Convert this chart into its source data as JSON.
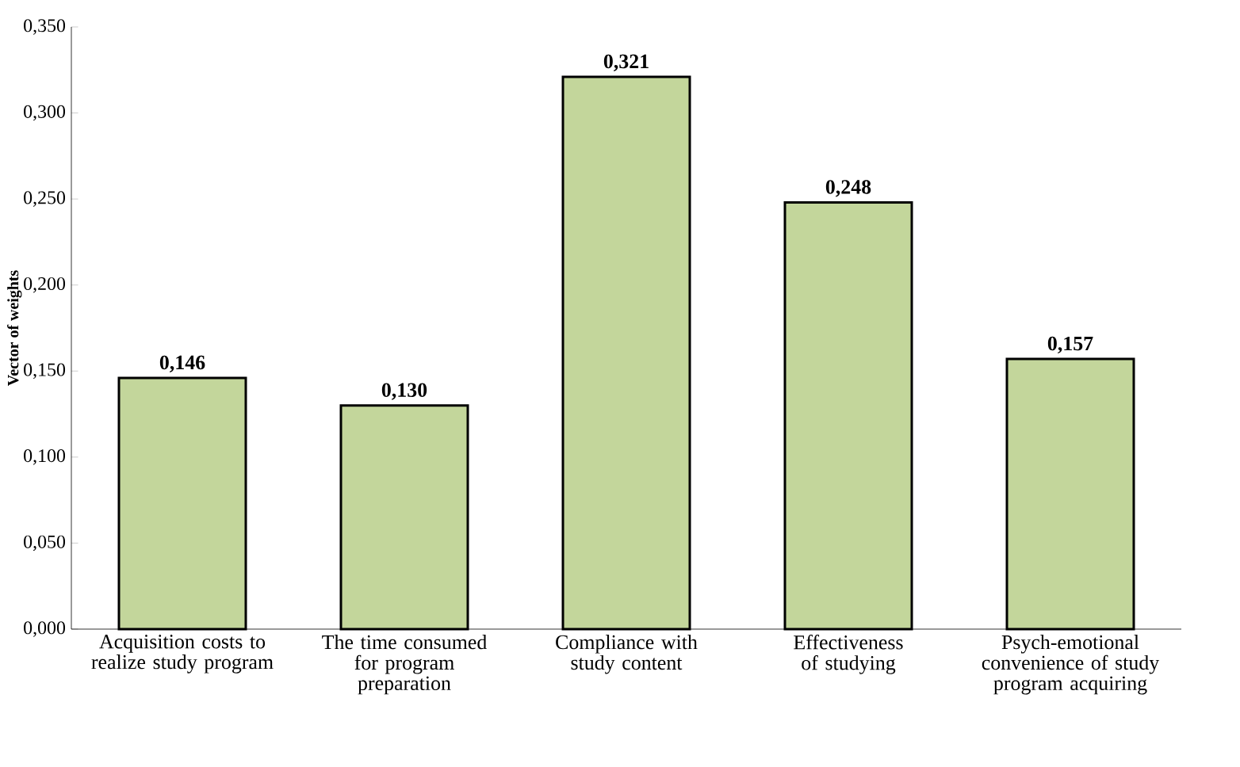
{
  "chart_data": {
    "type": "bar",
    "ylabel": "Vector of weights",
    "categories": [
      "Acquisition costs to realize study program",
      "The time consumed for program preparation",
      "Compliance with study content",
      "Effectiveness of studying",
      "Psych-emotional convenience of study program acquiring"
    ],
    "values": [
      0.146,
      0.13,
      0.321,
      0.248,
      0.157
    ],
    "value_labels": [
      "0,146",
      "0,130",
      "0,321",
      "0,248",
      "0,157"
    ],
    "color": "#c3d69b",
    "ylim": [
      0,
      0.35
    ],
    "yticks": [
      {
        "value": 0,
        "label": "0,000"
      },
      {
        "value": 0.05,
        "label": "0,050"
      },
      {
        "value": 0.1,
        "label": "0,100"
      },
      {
        "value": 0.15,
        "label": "0,150"
      },
      {
        "value": 0.2,
        "label": "0,200"
      },
      {
        "value": 0.25,
        "label": "0,250"
      },
      {
        "value": 0.3,
        "label": "0,300"
      },
      {
        "value": 0.35,
        "label": "0,350"
      }
    ]
  }
}
